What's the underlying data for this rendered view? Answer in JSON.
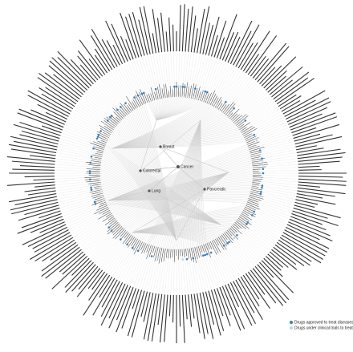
{
  "nodes": [
    {
      "label": "Cancer"
    },
    {
      "label": "Colorectal"
    },
    {
      "label": "Breast"
    },
    {
      "label": "Lung"
    },
    {
      "label": "Pancreatic"
    }
  ],
  "legend": [
    {
      "label": "Drugs approved to treat diseases",
      "color": "#3b7fb6"
    },
    {
      "label": "Drugs under clinical trials to treat diseases",
      "color": "#bcd6ea"
    }
  ]
}
